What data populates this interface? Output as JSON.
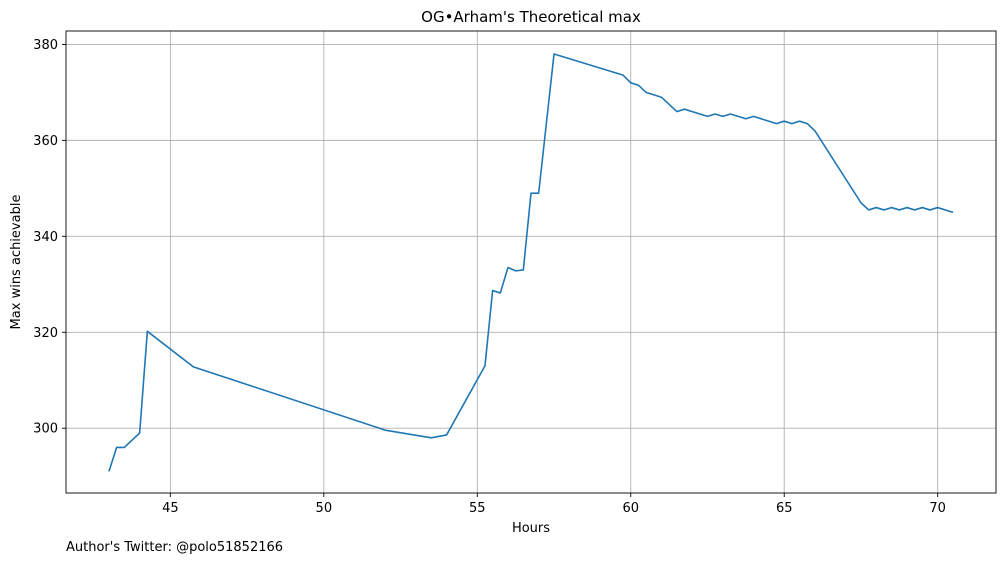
{
  "chart_data": {
    "type": "line",
    "title": "OG•Arham's Theoretical max",
    "xlabel": "Hours",
    "ylabel": "Max wins achievable",
    "footnote": "Author's Twitter: @polo51852166",
    "xlim": [
      41.6,
      71.9
    ],
    "ylim": [
      286.5,
      382.8
    ],
    "xticks": [
      45,
      50,
      55,
      60,
      65,
      70
    ],
    "yticks": [
      300,
      320,
      340,
      360,
      380
    ],
    "grid": true,
    "color": "#1f77b4",
    "series": [
      {
        "x": [
          43.0,
          43.25,
          43.5,
          44.0,
          44.25,
          45.75,
          52.0,
          53.5,
          54.0,
          55.25,
          55.5,
          55.75,
          56.0,
          56.25,
          56.5,
          56.75,
          57.0,
          57.5,
          59.75,
          60.0,
          60.25,
          60.5,
          61.0,
          61.5,
          61.75,
          62.5,
          62.75,
          63.0,
          63.25,
          63.75,
          64.0,
          64.75,
          65.0,
          65.25,
          65.5,
          65.75,
          66.0,
          67.5,
          67.75,
          68.0,
          68.25,
          68.5,
          68.75,
          69.0,
          69.25,
          69.5,
          69.75,
          70.0,
          70.5
        ],
        "values": [
          291,
          296,
          296,
          299,
          320.2,
          312.8,
          299.6,
          298,
          298.6,
          313,
          328.7,
          328.2,
          333.5,
          332.8,
          333,
          349,
          349,
          378,
          373.6,
          372,
          371.5,
          370,
          369,
          366,
          366.5,
          365,
          365.5,
          365,
          365.5,
          364.5,
          365,
          363.5,
          364,
          363.5,
          364,
          363.5,
          362,
          347,
          345.5,
          346,
          345.5,
          346,
          345.5,
          346,
          345.5,
          346,
          345.5,
          346,
          345
        ]
      }
    ]
  }
}
